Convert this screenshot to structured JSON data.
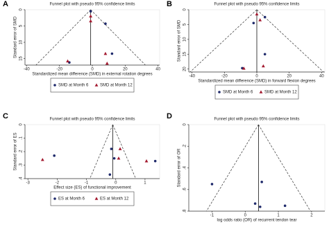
{
  "chart_data": [
    {
      "type": "scatter",
      "panel_label": "A",
      "title": "Funnel plot with pseudo 95% confidence limits",
      "xlabel": "Standardized mean difference (SMD) in external rotation degrees",
      "ylabel": "Standard error of SMD",
      "xlim": [
        -41,
        41
      ],
      "ylim": [
        0,
        17
      ],
      "xticks": [
        -40,
        -20,
        0,
        20,
        40
      ],
      "yticks": [
        0,
        5,
        10,
        15
      ],
      "y_reversed": true,
      "pooled": -1,
      "legend": true,
      "series": [
        {
          "name": "SMD at Month 6",
          "color": "#1f2a6b",
          "marker": "circle",
          "x": [
            -1,
            8,
            12,
            -14
          ],
          "values": [
            0.5,
            4.3,
            13.5,
            16.2
          ]
        },
        {
          "name": "SMD at Month 12",
          "color": "#a3182e",
          "marker": "triangle",
          "x": [
            -1,
            -1,
            8,
            9,
            -15
          ],
          "values": [
            2,
            3.5,
            13.5,
            16.5,
            15.8
          ]
        }
      ]
    },
    {
      "type": "scatter",
      "panel_label": "B",
      "title": "Funnel plot with pseudo 95% confidence limits",
      "xlabel": "Standardized mean difference (SMD) in forward flexion degrees",
      "ylabel": "Standard error of SMD",
      "xlim": [
        -42,
        42
      ],
      "ylim": [
        0,
        21
      ],
      "xticks": [
        -40,
        -20,
        0,
        20,
        40
      ],
      "yticks": [
        0,
        5,
        10,
        15,
        20
      ],
      "y_reversed": true,
      "pooled": 0,
      "legend": true,
      "series": [
        {
          "name": "SMD at Month 6",
          "color": "#1f2a6b",
          "marker": "circle",
          "x": [
            5,
            -2,
            5,
            -9
          ],
          "values": [
            2.5,
            4.5,
            15,
            19.7
          ]
        },
        {
          "name": "SMD at Month 12",
          "color": "#a3182e",
          "marker": "triangle",
          "x": [
            0,
            2,
            4,
            -8
          ],
          "values": [
            1.5,
            3.5,
            19,
            19.8
          ]
        }
      ]
    },
    {
      "type": "scatter",
      "panel_label": "C",
      "title": "Funnel plot with pseudo 95% confidence limits",
      "xlabel": "Effect size (ES) of functional improvement",
      "ylabel": "Standard error of ES",
      "xlim": [
        -3.1,
        1.5
      ],
      "ylim": [
        0,
        0.4
      ],
      "xticks": [
        -3,
        -2,
        -1,
        0,
        1
      ],
      "yticks": [
        0,
        {
          "value": 0.1,
          "label": ".1"
        },
        {
          "value": 0.2,
          "label": ".2"
        },
        {
          "value": 0.3,
          "label": ".3"
        },
        {
          "value": 0.4,
          "label": ".4"
        }
      ],
      "y_reversed": true,
      "pooled": -0.1,
      "legend": true,
      "series": [
        {
          "name": "ES at Month 6",
          "color": "#1f2a6b",
          "marker": "circle",
          "x": [
            -2.1,
            -0.15,
            -0.05,
            -0.2,
            1.35
          ],
          "values": [
            0.23,
            0.18,
            0.25,
            0.37,
            0.27
          ]
        },
        {
          "name": "ES at Month 12",
          "color": "#a3182e",
          "marker": "triangle",
          "x": [
            -2.5,
            0.15,
            0.1,
            1.05
          ],
          "values": [
            0.26,
            0.18,
            0.25,
            0.27
          ]
        }
      ]
    },
    {
      "type": "scatter",
      "panel_label": "D",
      "title": "Funnel plot with pseudo 95% confidence limits",
      "xlabel": "log odds ratio (OR) of recurrent tendon tear",
      "ylabel": "Standard error of OR",
      "xlim": [
        -1.7,
        2.4
      ],
      "ylim": [
        0,
        0.8
      ],
      "xticks": [
        -1,
        0,
        1,
        2
      ],
      "yticks": [
        0,
        {
          "value": 0.2,
          "label": ".2"
        },
        {
          "value": 0.4,
          "label": ".4"
        },
        {
          "value": 0.6,
          "label": ".6"
        },
        {
          "value": 0.8,
          "label": ".8"
        }
      ],
      "y_reversed": true,
      "pooled": 0.4,
      "legend": false,
      "series": [
        {
          "name": "OR",
          "color": "#1f2a6b",
          "marker": "circle",
          "x": [
            -1.0,
            0.5,
            0.3,
            0.45,
            1.2
          ],
          "values": [
            0.55,
            0.53,
            0.73,
            0.76,
            0.75
          ]
        }
      ]
    }
  ]
}
